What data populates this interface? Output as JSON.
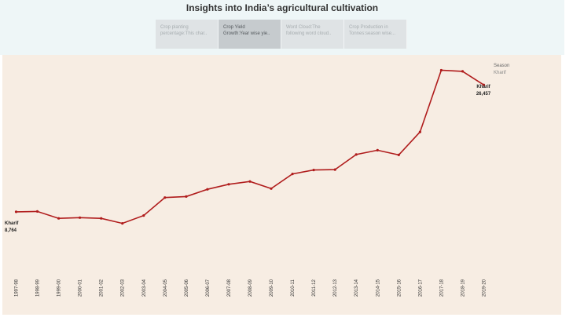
{
  "header": {
    "title": "Insights into India’s agricultural cultivation"
  },
  "tabs": [
    {
      "line1": "Crop planting",
      "line2": "percentage:This char..",
      "active": false
    },
    {
      "line1": "Crop Yield",
      "line2": "Growth:Year wise yie..",
      "active": true
    },
    {
      "line1": "Word Cloud:The",
      "line2": "following word cloud..",
      "active": false
    },
    {
      "line1": "Crop Production in",
      "line2": "Tonnes:season wise...",
      "active": false
    }
  ],
  "legend": {
    "title": "Season",
    "value": "Kharif"
  },
  "colors": {
    "line": "#b01c1c",
    "background": "#f7ede3",
    "header": "#eef6f7"
  },
  "chart_data": {
    "type": "line",
    "categories": [
      "1997-98",
      "1998-99",
      "1999-00",
      "2000-01",
      "2001-02",
      "2002-03",
      "2003-04",
      "2004-05",
      "2005-06",
      "2006-07",
      "2007-08",
      "2008-09",
      "2009-10",
      "2010-11",
      "2011-12",
      "2012-13",
      "2013-14",
      "2014-15",
      "2015-16",
      "2016-17",
      "2017-18",
      "2018-19",
      "2019-20"
    ],
    "series": [
      {
        "name": "Kharif",
        "values": [
          8764,
          8820,
          7850,
          7950,
          7850,
          7150,
          8250,
          10750,
          10900,
          11900,
          12600,
          13000,
          12000,
          14050,
          14600,
          14650,
          16750,
          17350,
          16700,
          19900,
          28500,
          28350,
          26457
        ]
      }
    ],
    "labels": {
      "start": {
        "name": "Kharif",
        "value": "8,764"
      },
      "end": {
        "name": "Kharif",
        "value": "26,457"
      }
    },
    "ylim": [
      0,
      30000
    ],
    "grid": false,
    "legend_position": "top-right"
  }
}
